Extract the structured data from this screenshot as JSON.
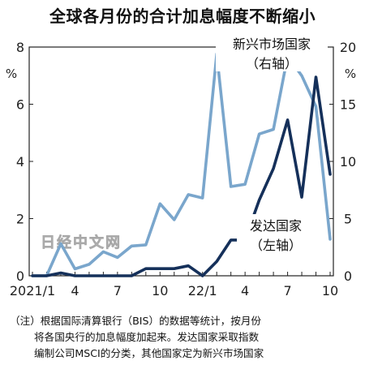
{
  "title": "全球各月份的合计加息幅度不断缩小",
  "watermark": "日经中文网",
  "note": {
    "prefix": "（注）",
    "line1": "根据国际清算银行（BIS）的数据等统计，按月份",
    "line2": "将各国央行的加息幅度加起来。发达国家采取指数",
    "line3": "编制公司MSCI的分类，其他国家定为新兴市场国家"
  },
  "chart_data": {
    "type": "line",
    "x": [
      "2021/1",
      "2",
      "3",
      "4",
      "5",
      "6",
      "7",
      "8",
      "9",
      "10",
      "11",
      "12",
      "22/1",
      "2",
      "3",
      "4",
      "5",
      "6",
      "7",
      "8",
      "9",
      "10"
    ],
    "x_tick_labels": [
      "2021/1",
      "4",
      "7",
      "10",
      "22/1",
      "4",
      "7",
      "10"
    ],
    "left_axis": {
      "unit": "%",
      "ylim": [
        0,
        8
      ],
      "ticks": [
        0,
        2,
        4,
        6,
        8
      ]
    },
    "right_axis": {
      "unit": "%",
      "ylim": [
        0,
        20
      ],
      "ticks": [
        0,
        5,
        10,
        15,
        20
      ]
    },
    "series": [
      {
        "name": "新兴市场国家",
        "name_sub": "（右轴）",
        "axis": "right",
        "color": "#7aa6cc",
        "values": [
          0,
          0,
          2.8,
          0.6,
          1.0,
          2.1,
          1.6,
          2.6,
          2.7,
          6.3,
          4.9,
          7.1,
          6.8,
          19.4,
          7.8,
          8.0,
          12.4,
          12.8,
          19.2,
          17.5,
          14.8,
          3.2
        ]
      },
      {
        "name": "发达国家",
        "name_sub": "（左轴）",
        "axis": "left",
        "color": "#15305a",
        "values": [
          0,
          0,
          0.1,
          0,
          0,
          0,
          0,
          0,
          0.25,
          0.25,
          0.25,
          0.35,
          0,
          0.5,
          1.25,
          1.25,
          2.65,
          3.75,
          5.45,
          2.75,
          6.95,
          3.55
        ]
      }
    ]
  }
}
